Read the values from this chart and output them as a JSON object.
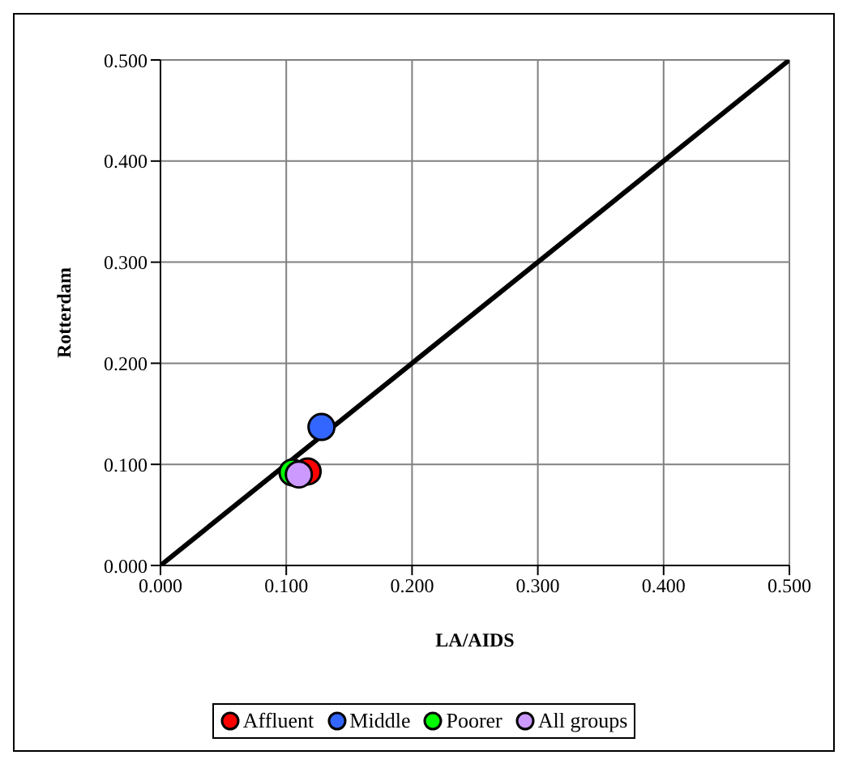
{
  "chart_data": {
    "type": "scatter",
    "xlabel": "LA/AIDS",
    "ylabel": "Rotterdam",
    "xlim": [
      0,
      0.5
    ],
    "ylim": [
      0,
      0.5
    ],
    "xticks": [
      {
        "value": 0,
        "label": "0.000"
      },
      {
        "value": 0.1,
        "label": "0.100"
      },
      {
        "value": 0.2,
        "label": "0.200"
      },
      {
        "value": 0.3,
        "label": "0.300"
      },
      {
        "value": 0.4,
        "label": "0.400"
      },
      {
        "value": 0.5,
        "label": "0.500"
      }
    ],
    "yticks": [
      {
        "value": 0,
        "label": "0.000"
      },
      {
        "value": 0.1,
        "label": "0.100"
      },
      {
        "value": 0.2,
        "label": "0.200"
      },
      {
        "value": 0.3,
        "label": "0.300"
      },
      {
        "value": 0.4,
        "label": "0.400"
      },
      {
        "value": 0.5,
        "label": "0.500"
      }
    ],
    "grid": true,
    "legend": "bottom",
    "marker": "circle",
    "series": [
      {
        "type": "line",
        "color": "#000000",
        "x": [
          0,
          0.5
        ],
        "values": [
          0,
          0.5
        ],
        "marker": "none"
      },
      {
        "name": "Affluent",
        "color": "#ff0000",
        "x": [
          0.117
        ],
        "values": [
          0.093
        ]
      },
      {
        "name": "Middle",
        "color": "#3366ff",
        "x": [
          0.128
        ],
        "values": [
          0.137
        ]
      },
      {
        "name": "Poorer",
        "color": "#00ff00",
        "x": [
          0.105
        ],
        "values": [
          0.092
        ]
      },
      {
        "name": "All groups",
        "color": "#cc99ff",
        "x": [
          0.11
        ],
        "values": [
          0.09
        ]
      }
    ]
  }
}
